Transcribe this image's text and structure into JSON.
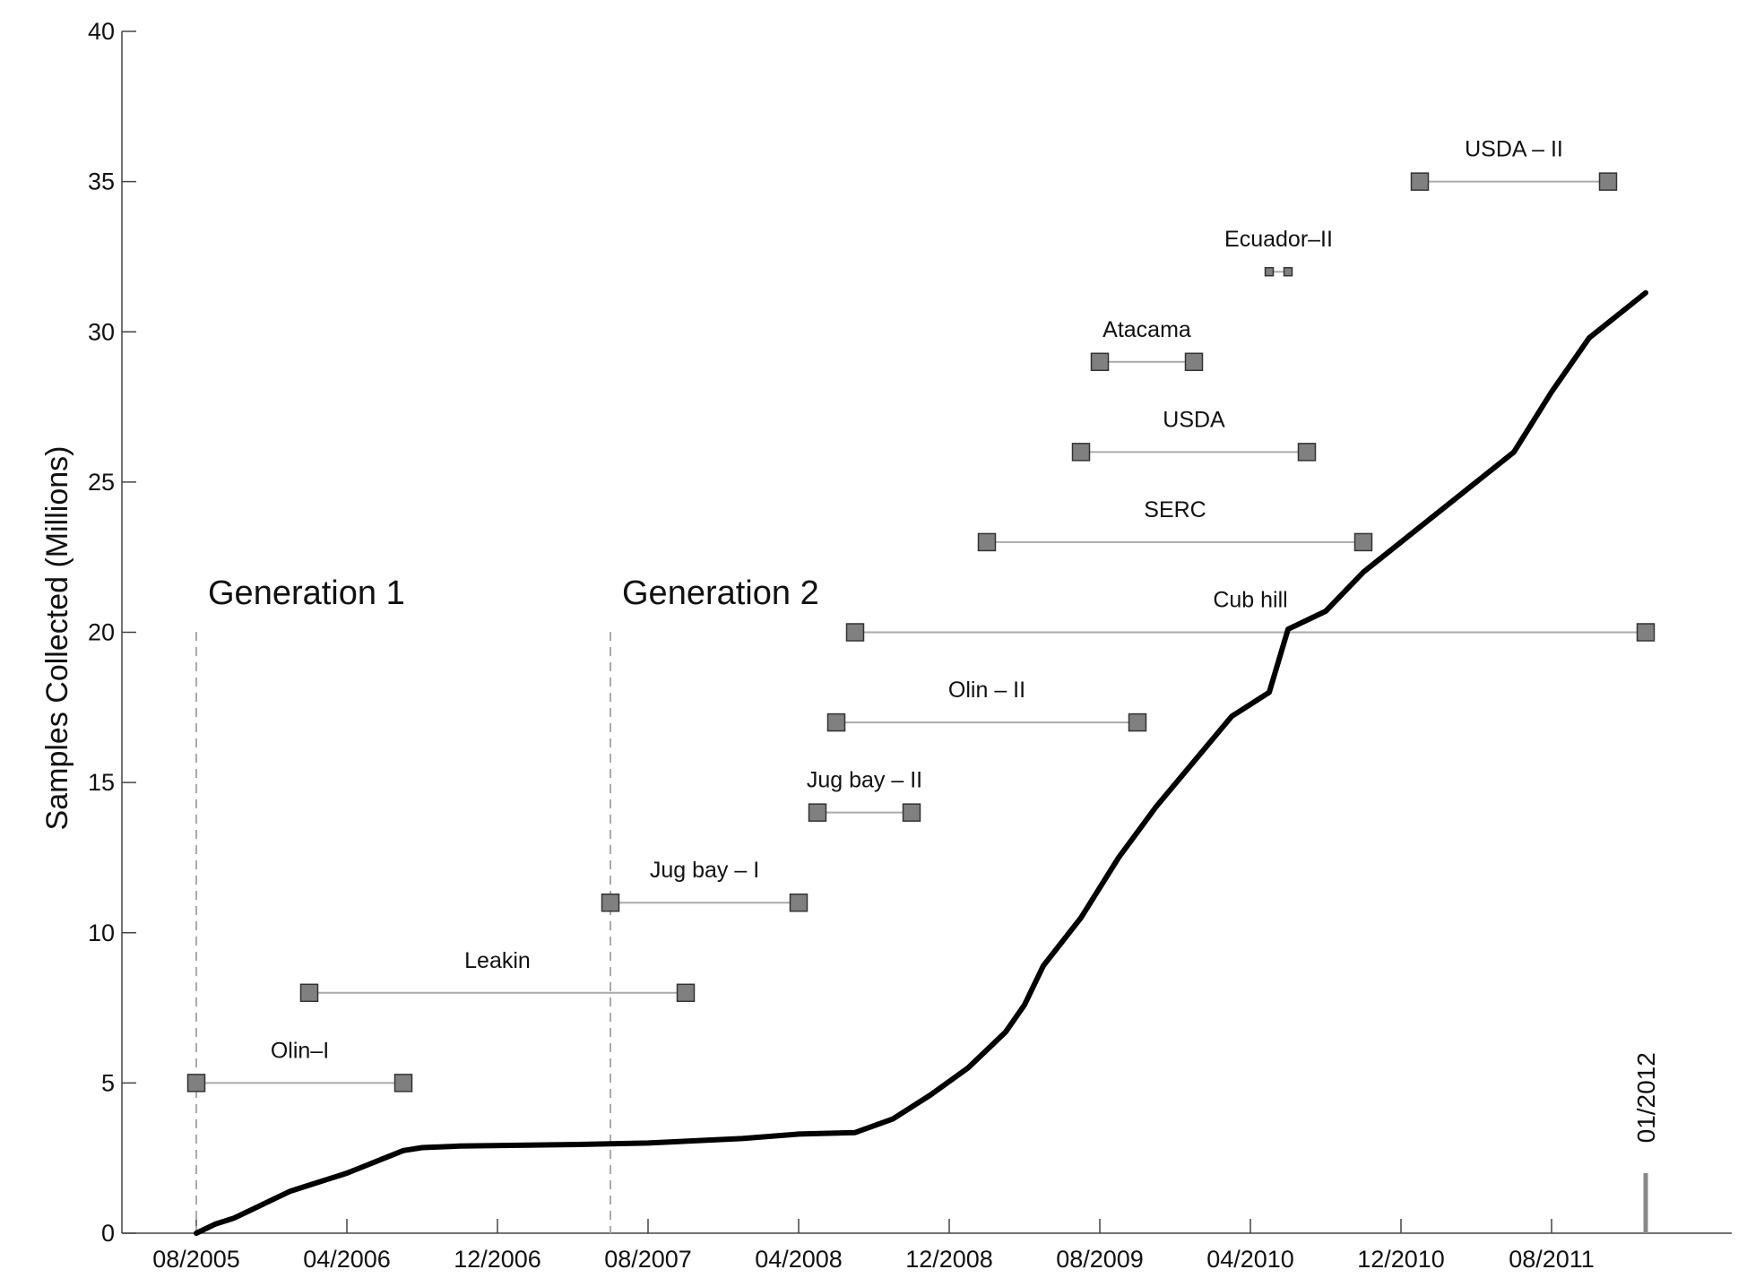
{
  "chart_data": {
    "type": "line",
    "ylabel": "Samples Collected (Millions)",
    "xlabel": "",
    "ylim": [
      0,
      40
    ],
    "yticks": [
      0,
      5,
      10,
      15,
      20,
      25,
      30,
      35,
      40
    ],
    "xlim": [
      "2005-06",
      "2012-12"
    ],
    "xticks": [
      {
        "date": "2005-08",
        "label": "08/2005"
      },
      {
        "date": "2006-04",
        "label": "04/2006"
      },
      {
        "date": "2006-12",
        "label": "12/2006"
      },
      {
        "date": "2007-08",
        "label": "08/2007"
      },
      {
        "date": "2008-04",
        "label": "04/2008"
      },
      {
        "date": "2008-12",
        "label": "12/2008"
      },
      {
        "date": "2009-08",
        "label": "08/2009"
      },
      {
        "date": "2010-04",
        "label": "04/2010"
      },
      {
        "date": "2010-12",
        "label": "12/2010"
      },
      {
        "date": "2011-08",
        "label": "08/2011"
      }
    ],
    "series": [
      {
        "points": [
          [
            "2005-08",
            0.0
          ],
          [
            "2005-09",
            0.3
          ],
          [
            "2005-10",
            0.5
          ],
          [
            "2005-11",
            0.8
          ],
          [
            "2005-12",
            1.1
          ],
          [
            "2006-01",
            1.4
          ],
          [
            "2006-02",
            1.6
          ],
          [
            "2006-03",
            1.8
          ],
          [
            "2006-04",
            2.0
          ],
          [
            "2006-05",
            2.25
          ],
          [
            "2006-06",
            2.5
          ],
          [
            "2006-07",
            2.75
          ],
          [
            "2006-08",
            2.85
          ],
          [
            "2006-10",
            2.9
          ],
          [
            "2007-04",
            2.95
          ],
          [
            "2007-08",
            3.0
          ],
          [
            "2008-01",
            3.15
          ],
          [
            "2008-04",
            3.3
          ],
          [
            "2008-07",
            3.35
          ],
          [
            "2008-09",
            3.8
          ],
          [
            "2008-11",
            4.6
          ],
          [
            "2009-01",
            5.5
          ],
          [
            "2009-03",
            6.7
          ],
          [
            "2009-04",
            7.6
          ],
          [
            "2009-05",
            8.9
          ],
          [
            "2009-07",
            10.5
          ],
          [
            "2009-09",
            12.5
          ],
          [
            "2009-11",
            14.2
          ],
          [
            "2010-01",
            15.7
          ],
          [
            "2010-03",
            17.2
          ],
          [
            "2010-05",
            18.0
          ],
          [
            "2010-06",
            20.1
          ],
          [
            "2010-08",
            20.7
          ],
          [
            "2010-10",
            22.0
          ],
          [
            "2010-12",
            23.0
          ],
          [
            "2011-02",
            24.0
          ],
          [
            "2011-04",
            25.0
          ],
          [
            "2011-06",
            26.0
          ],
          [
            "2011-08",
            28.0
          ],
          [
            "2011-10",
            29.8
          ],
          [
            "2012-01",
            31.3
          ]
        ]
      }
    ],
    "intervals": [
      {
        "label": "Olin–I",
        "start": "2005-08",
        "end": "2006-07",
        "y": 5
      },
      {
        "label": "Leakin",
        "start": "2006-02",
        "end": "2007-10",
        "y": 8
      },
      {
        "label": "Jug bay – I",
        "start": "2007-06",
        "end": "2008-04",
        "y": 11
      },
      {
        "label": "Jug bay – II",
        "start": "2008-05",
        "end": "2008-10",
        "y": 14
      },
      {
        "label": "Olin – II",
        "start": "2008-06",
        "end": "2009-10",
        "y": 17
      },
      {
        "label": "Cub hill",
        "start": "2008-07",
        "end": "2012-01",
        "y": 20
      },
      {
        "label": "SERC",
        "start": "2009-02",
        "end": "2010-10",
        "y": 23
      },
      {
        "label": "USDA",
        "start": "2009-07",
        "end": "2010-07",
        "y": 26
      },
      {
        "label": "Atacama",
        "start": "2009-08",
        "end": "2010-01",
        "y": 29
      },
      {
        "label": "Ecuador–II",
        "start": "2010-05",
        "end": "2010-06",
        "y": 32
      },
      {
        "label": "USDA – II",
        "start": "2011-01",
        "end": "2011-11",
        "y": 35
      }
    ],
    "generations": [
      {
        "label": "Generation 1",
        "date": "2005-08"
      },
      {
        "label": "Generation 2",
        "date": "2007-06"
      }
    ],
    "end_marker": {
      "label": "01/2012",
      "date": "2012-01"
    },
    "grid": false,
    "legend": "none",
    "colors": {
      "line": "#000000",
      "marker_fill": "#808080",
      "marker_stroke": "#333333",
      "interval_line": "#aaaaaa",
      "generation_line": "#aaaaaa",
      "end_marker": "#888888"
    }
  }
}
